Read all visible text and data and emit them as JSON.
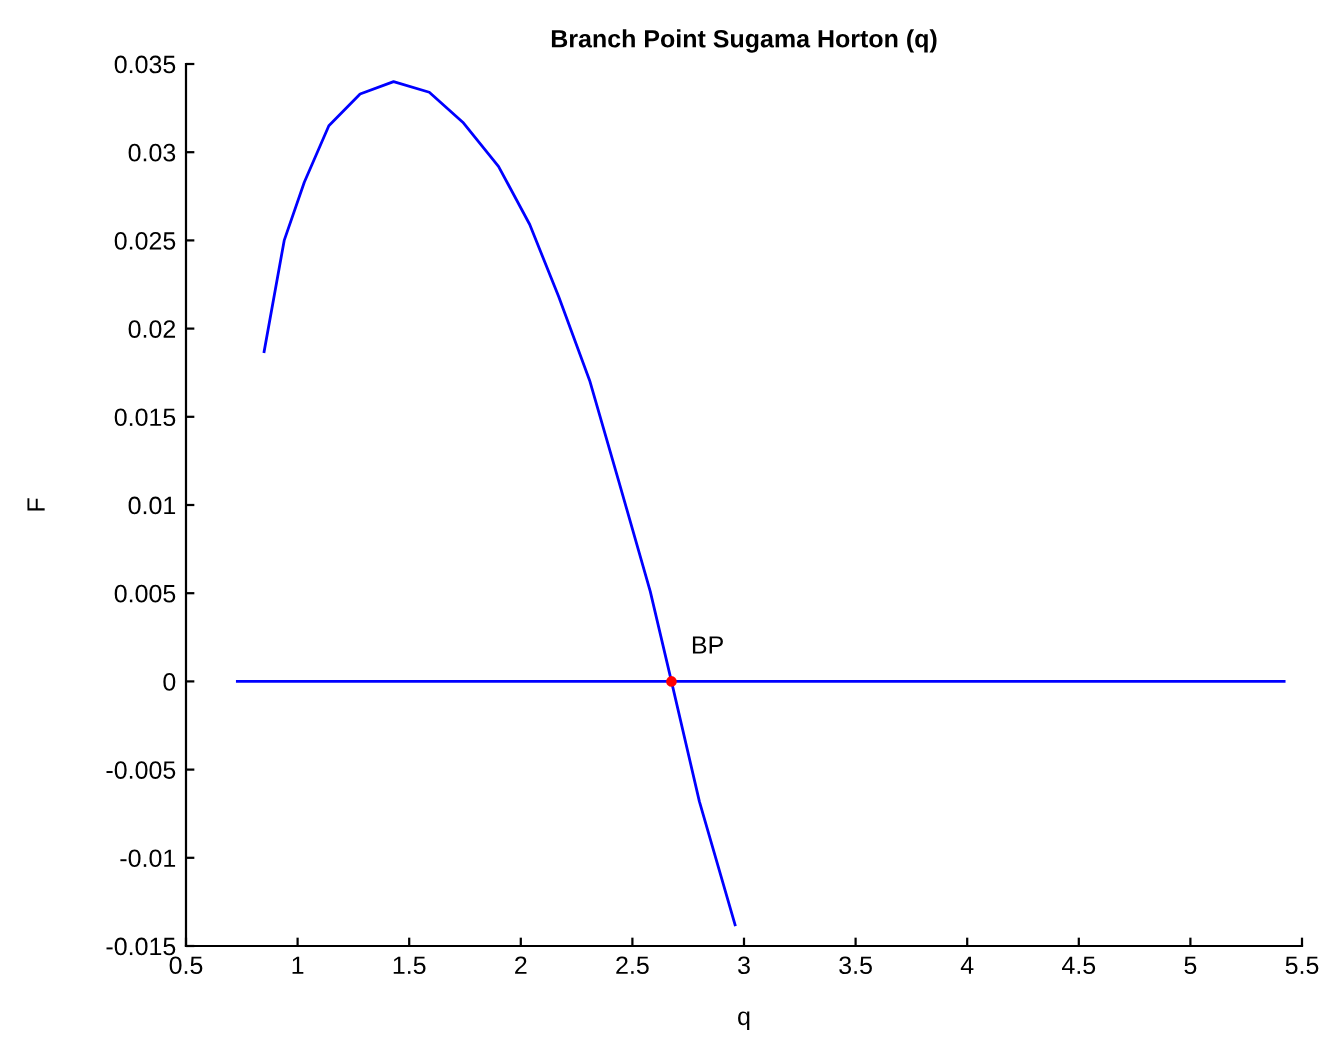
{
  "chart_data": {
    "type": "line",
    "title": "Branch Point Sugama Horton (q)",
    "xlabel": "q",
    "ylabel": "F",
    "series": [
      {
        "color": "#0000ff",
        "x": [
          0.85,
          0.94,
          1.03,
          1.14,
          1.28,
          1.43,
          1.59,
          1.74,
          1.9,
          2.04,
          2.17,
          2.31,
          2.44,
          2.58,
          2.675,
          2.8,
          2.96
        ],
        "values": [
          0.0187,
          0.025,
          0.0283,
          0.0315,
          0.0333,
          0.034,
          0.0334,
          0.0317,
          0.0292,
          0.0259,
          0.0218,
          0.017,
          0.0113,
          0.0051,
          0,
          -0.0068,
          -0.0138
        ]
      },
      {
        "color": "#0000ff",
        "x": [
          0.73,
          5.42
        ],
        "values": [
          0,
          0
        ]
      },
      {
        "type": "scatter",
        "color": "#ff0000",
        "x": [
          2.675
        ],
        "values": [
          0
        ]
      }
    ],
    "annotations": [
      {
        "text": "BP",
        "x": 2.675,
        "y": 0
      }
    ],
    "xlim": [
      0.5,
      5.5
    ],
    "xticks": [
      0.5,
      1,
      1.5,
      2,
      2.5,
      3,
      3.5,
      4,
      4.5,
      5,
      5.5
    ],
    "ylim": [
      -0.015,
      0.035
    ],
    "yticks": [
      -0.015,
      -0.01,
      -0.005,
      0,
      0.005,
      0.01,
      0.015,
      0.02,
      0.025,
      0.03,
      0.035
    ],
    "grid": false,
    "legend": false
  }
}
